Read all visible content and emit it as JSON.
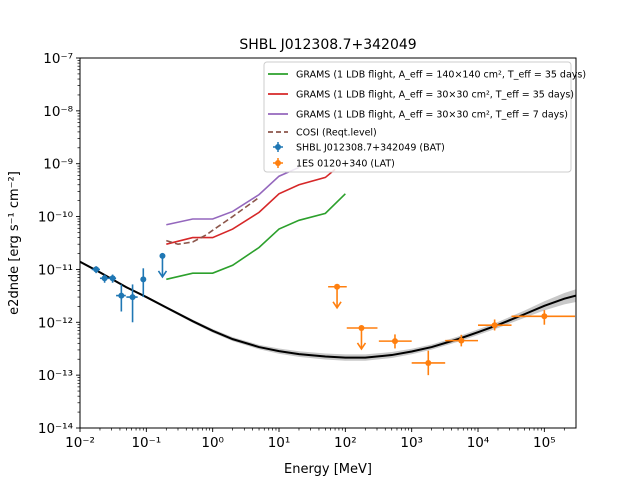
{
  "chart_data": {
    "type": "scatter",
    "title": "SHBL J012308.7+342049",
    "xlabel": "Energy [MeV]",
    "ylabel": "e2dnde [erg s⁻¹ cm⁻²]",
    "xscale": "log",
    "yscale": "log",
    "xlim": [
      0.01,
      300000
    ],
    "ylim": [
      1e-14,
      1e-07
    ],
    "x_ticks": [
      "10⁻²",
      "10⁻¹",
      "10⁰",
      "10¹",
      "10²",
      "10³",
      "10⁴",
      "10⁵"
    ],
    "y_ticks": [
      "10⁻¹⁴",
      "10⁻¹³",
      "10⁻¹²",
      "10⁻¹¹",
      "10⁻¹⁰",
      "10⁻⁹",
      "10⁻⁸",
      "10⁻⁷"
    ],
    "grid": false,
    "legend_position": "top-right",
    "sensitivity_curves": [
      {
        "name": "GRAMS (1 LDB flight, A_eff = 140×140 cm², T_eff = 35 days)",
        "color": "#2ca02c",
        "style": "solid",
        "x": [
          0.2,
          0.5,
          1,
          2,
          5,
          10,
          20,
          50,
          100
        ],
        "y": [
          6.5e-12,
          8.5e-12,
          8.5e-12,
          1.2e-11,
          2.6e-11,
          5.8e-11,
          8.5e-11,
          1.15e-10,
          2.7e-10
        ]
      },
      {
        "name": "GRAMS (1 LDB flight, A_eff = 30×30 cm², T_eff = 35 days)",
        "color": "#d62728",
        "style": "solid",
        "x": [
          0.2,
          0.5,
          1,
          2,
          5,
          10,
          20,
          50,
          70
        ],
        "y": [
          3e-11,
          4e-11,
          4e-11,
          5.8e-11,
          1.2e-10,
          2.7e-10,
          4e-10,
          5.5e-10,
          7.8e-10
        ]
      },
      {
        "name": "GRAMS (1 LDB flight, A_eff = 30×30 cm², T_eff = 7 days)",
        "color": "#9467bd",
        "style": "solid",
        "x": [
          0.2,
          0.5,
          1,
          2,
          5,
          10,
          20
        ],
        "y": [
          7e-11,
          9e-11,
          9e-11,
          1.25e-10,
          2.6e-10,
          5.8e-10,
          8.5e-10
        ]
      },
      {
        "name": "COSI (Reqt.level)",
        "color": "#8c564b",
        "style": "dashed",
        "x": [
          0.2,
          0.3,
          0.5,
          0.8,
          1,
          2,
          5
        ],
        "y": [
          3.5e-11,
          3e-11,
          3.3e-11,
          4.5e-11,
          5.5e-11,
          1e-10,
          2.3e-10
        ]
      }
    ],
    "bat_points": {
      "name": "SHBL J012308.7+342049 (BAT)",
      "color": "#1f77b4",
      "points": [
        {
          "x": 0.0175,
          "y": 1e-11,
          "xerr": [
            0.0025,
            0.0025
          ],
          "yerr": [
            1.5e-12,
            1.5e-12
          ],
          "ul": false
        },
        {
          "x": 0.0235,
          "y": 6.8e-12,
          "xerr": [
            0.0035,
            0.0035
          ],
          "yerr": [
            1.2e-12,
            1.2e-12
          ],
          "ul": false
        },
        {
          "x": 0.031,
          "y": 6.8e-12,
          "xerr": [
            0.004,
            0.004
          ],
          "yerr": [
            1.2e-12,
            1.2e-12
          ],
          "ul": false
        },
        {
          "x": 0.042,
          "y": 3.2e-12,
          "xerr": [
            0.007,
            0.007
          ],
          "yerr": [
            1.6e-12,
            2e-12
          ],
          "ul": false
        },
        {
          "x": 0.062,
          "y": 3e-12,
          "xerr": [
            0.012,
            0.012
          ],
          "yerr": [
            2e-12,
            2.2e-12
          ],
          "ul": false
        },
        {
          "x": 0.09,
          "y": 6.5e-12,
          "xerr": [
            0,
            0
          ],
          "yerr": [
            3.5e-12,
            4e-12
          ],
          "ul": false
        },
        {
          "x": 0.175,
          "y": 1.8e-11,
          "xerr": [
            0,
            0
          ],
          "yerr": [
            0,
            0
          ],
          "ul": true
        }
      ]
    },
    "lat_points": {
      "name": "1ES 0120+340 (LAT)",
      "color": "#ff7f0e",
      "points": [
        {
          "x": 75,
          "y": 4.7e-12,
          "xerr": [
            20,
            30
          ],
          "yerr": [
            0,
            0
          ],
          "ul": true
        },
        {
          "x": 175,
          "y": 7.8e-13,
          "xerr": [
            70,
            130
          ],
          "yerr": [
            0,
            0
          ],
          "ul": true
        },
        {
          "x": 560,
          "y": 4.4e-13,
          "xerr": [
            240,
            440
          ],
          "yerr": [
            1.2e-13,
            1.5e-13
          ],
          "ul": false
        },
        {
          "x": 1780,
          "y": 1.7e-13,
          "xerr": [
            780,
            1420
          ],
          "yerr": [
            7e-14,
            1.2e-13
          ],
          "ul": false
        },
        {
          "x": 5600,
          "y": 4.5e-13,
          "xerr": [
            2400,
            4400
          ],
          "yerr": [
            1e-13,
            1.3e-13
          ],
          "ul": false
        },
        {
          "x": 17800,
          "y": 8.8e-13,
          "xerr": [
            7800,
            14200
          ],
          "yerr": [
            1.8e-13,
            2.5e-13
          ],
          "ul": false
        },
        {
          "x": 100000,
          "y": 1.3e-12,
          "xerr": [
            68000,
            190000
          ],
          "yerr": [
            4e-13,
            4e-13
          ],
          "ul": false
        }
      ]
    },
    "model": {
      "color": "#000000",
      "band_color": "#c8c8c8",
      "x": [
        0.01,
        0.02,
        0.05,
        0.1,
        0.2,
        0.5,
        1,
        2,
        5,
        10,
        20,
        50,
        100,
        200,
        500,
        1000,
        2000,
        5000,
        10000,
        20000,
        50000,
        100000,
        200000,
        300000
      ],
      "y": [
        1.4e-11,
        8.8e-12,
        4.6e-12,
        3e-12,
        1.9e-12,
        1.05e-12,
        6.9e-13,
        4.8e-13,
        3.4e-13,
        2.85e-13,
        2.5e-13,
        2.25e-13,
        2.15e-13,
        2.15e-13,
        2.4e-13,
        2.8e-13,
        3.4e-13,
        4.8e-13,
        6.5e-13,
        8.9e-13,
        1.42e-12,
        2.05e-12,
        2.8e-12,
        3.2e-12
      ],
      "band_factor": [
        1.05,
        1.05,
        1.05,
        1.05,
        1.06,
        1.07,
        1.08,
        1.09,
        1.1,
        1.12,
        1.13,
        1.14,
        1.15,
        1.15,
        1.14,
        1.13,
        1.12,
        1.12,
        1.13,
        1.14,
        1.17,
        1.22,
        1.28,
        1.32
      ]
    }
  }
}
